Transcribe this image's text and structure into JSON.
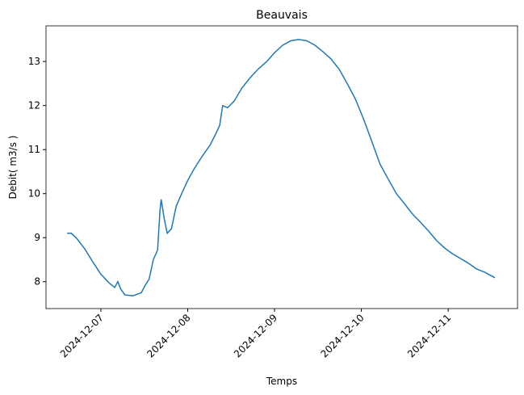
{
  "chart_data": {
    "type": "line",
    "title": "Beauvais",
    "xlabel": "Temps",
    "ylabel": "Debit( m3/s )",
    "x": [
      "2024-12-06T14:40",
      "2024-12-06T15:50",
      "2024-12-06T17:20",
      "2024-12-06T19:30",
      "2024-12-06T21:50",
      "2024-12-07T00:00",
      "2024-12-07T02:10",
      "2024-12-07T03:50",
      "2024-12-07T04:40",
      "2024-12-07T05:30",
      "2024-12-07T06:40",
      "2024-12-07T08:50",
      "2024-12-07T11:10",
      "2024-12-07T12:20",
      "2024-12-07T13:20",
      "2024-12-07T14:30",
      "2024-12-07T15:40",
      "2024-12-07T16:20",
      "2024-12-07T16:40",
      "2024-12-07T17:30",
      "2024-12-07T18:20",
      "2024-12-07T19:30",
      "2024-12-07T20:50",
      "2024-12-07T22:20",
      "2024-12-08T00:00",
      "2024-12-08T01:40",
      "2024-12-08T03:50",
      "2024-12-08T06:10",
      "2024-12-08T07:50",
      "2024-12-08T08:50",
      "2024-12-08T09:40",
      "2024-12-08T11:00",
      "2024-12-08T12:50",
      "2024-12-08T15:00",
      "2024-12-08T17:20",
      "2024-12-08T19:30",
      "2024-12-08T21:50",
      "2024-12-09T00:00",
      "2024-12-09T02:15",
      "2024-12-09T04:30",
      "2024-12-09T06:40",
      "2024-12-09T08:55",
      "2024-12-09T11:10",
      "2024-12-09T13:25",
      "2024-12-09T15:35",
      "2024-12-09T17:50",
      "2024-12-09T20:05",
      "2024-12-09T22:20",
      "2024-12-10T00:40",
      "2024-12-10T02:55",
      "2024-12-10T05:10",
      "2024-12-10T07:25",
      "2024-12-10T09:40",
      "2024-12-10T11:50",
      "2024-12-10T14:05",
      "2024-12-10T16:20",
      "2024-12-10T18:35",
      "2024-12-10T20:50",
      "2024-12-10T23:05",
      "2024-12-11T01:05",
      "2024-12-11T03:20",
      "2024-12-11T05:35",
      "2024-12-11T07:50",
      "2024-12-11T10:00",
      "2024-12-11T12:55"
    ],
    "series": [
      {
        "name": "Debit",
        "color": "#1f77b4",
        "values": [
          9.1,
          9.1,
          8.98,
          8.75,
          8.44,
          8.17,
          7.98,
          7.87,
          8.0,
          7.83,
          7.7,
          7.68,
          7.75,
          7.93,
          8.06,
          8.5,
          8.72,
          9.6,
          9.87,
          9.43,
          9.1,
          9.2,
          9.72,
          10.0,
          10.3,
          10.55,
          10.83,
          11.1,
          11.37,
          11.55,
          12.0,
          11.95,
          12.1,
          12.4,
          12.64,
          12.83,
          13.0,
          13.2,
          13.37,
          13.47,
          13.5,
          13.47,
          13.37,
          13.22,
          13.06,
          12.83,
          12.5,
          12.15,
          11.68,
          11.18,
          10.67,
          10.33,
          10.0,
          9.78,
          9.54,
          9.35,
          9.15,
          8.93,
          8.76,
          8.64,
          8.53,
          8.42,
          8.29,
          8.22,
          8.09
        ]
      }
    ],
    "xlim": [
      "2024-12-06T08:50",
      "2024-12-11T19:10"
    ],
    "xticks": [
      "2024-12-07",
      "2024-12-08",
      "2024-12-09",
      "2024-12-10",
      "2024-12-11"
    ],
    "ylim": [
      7.39,
      13.81
    ],
    "yticks": [
      8,
      9,
      10,
      11,
      12,
      13
    ]
  }
}
